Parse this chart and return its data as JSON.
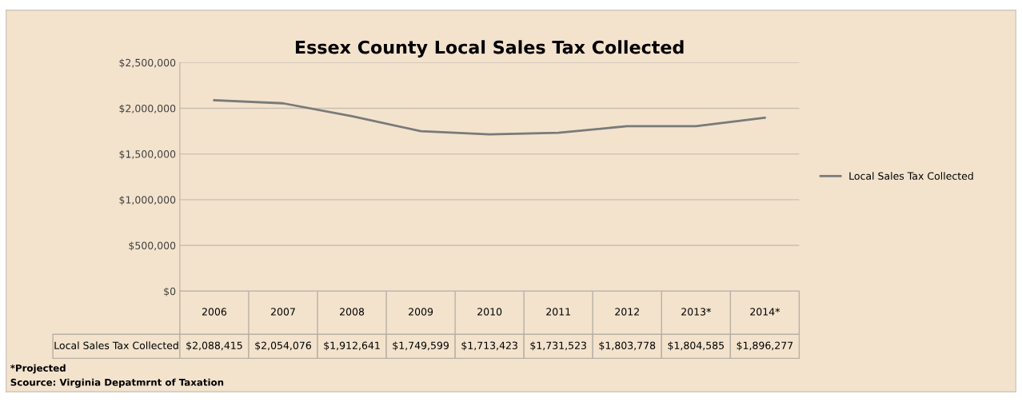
{
  "chart_data": {
    "type": "line",
    "title": "Essex County Local Sales Tax Collected",
    "categories": [
      "2006",
      "2007",
      "2008",
      "2009",
      "2010",
      "2011",
      "2012",
      "2013*",
      "2014*"
    ],
    "series": [
      {
        "name": "Local Sales Tax Collected",
        "color": "#7a7a7a",
        "values": [
          2088415,
          2054076,
          1912641,
          1749599,
          1713423,
          1731523,
          1803778,
          1804585,
          1896277
        ],
        "value_labels": [
          "$2,088,415",
          "$2,054,076",
          "$1,912,641",
          "$1,749,599",
          "$1,713,423",
          "$1,731,523",
          "$1,803,778",
          "$1,804,585",
          "$1,896,277"
        ]
      }
    ],
    "ylim": [
      0,
      2500000
    ],
    "yticks": [
      {
        "value": 0,
        "label": "$0"
      },
      {
        "value": 500000,
        "label": "$500,000"
      },
      {
        "value": 1000000,
        "label": "$1,000,000"
      },
      {
        "value": 1500000,
        "label": "$1,500,000"
      },
      {
        "value": 2000000,
        "label": "$2,000,000"
      },
      {
        "value": 2500000,
        "label": "$2,500,000"
      }
    ],
    "grid": "y",
    "legend": "right",
    "marker": "none",
    "line_style": "solid",
    "annotations": [
      "*Projected",
      "Scource: Virginia Depatmrnt of Taxation"
    ]
  }
}
